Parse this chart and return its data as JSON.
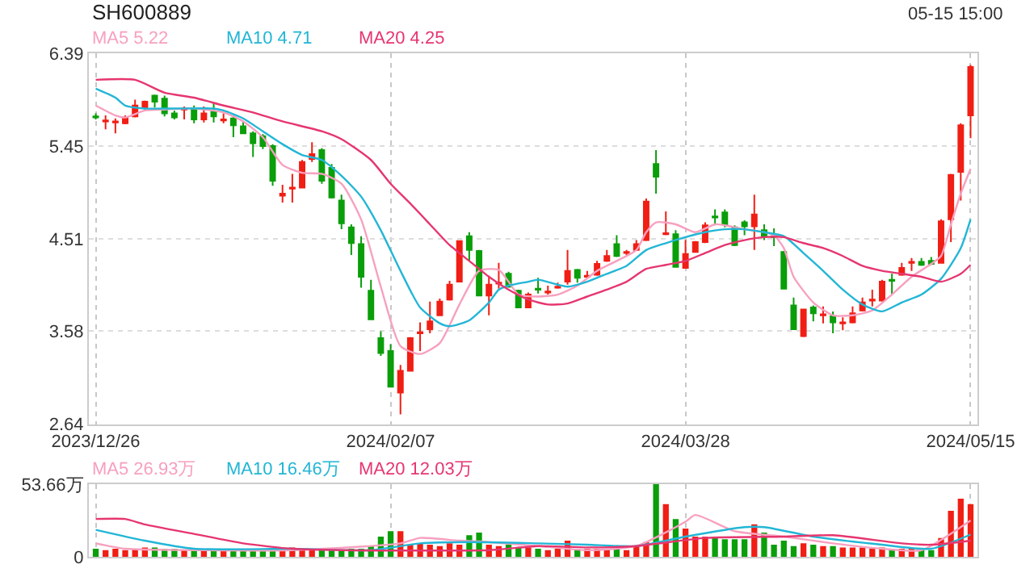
{
  "chart_data": [
    {
      "type": "candlestick",
      "title": "SH600889",
      "annotations": [
        "05-15 15:00"
      ],
      "categories": [
        "2023/12/26",
        null,
        null,
        null,
        null,
        null,
        null,
        null,
        null,
        null,
        null,
        null,
        null,
        null,
        null,
        null,
        null,
        null,
        null,
        null,
        null,
        null,
        null,
        null,
        null,
        null,
        null,
        null,
        null,
        null,
        "2024/02/07",
        null,
        null,
        null,
        null,
        null,
        null,
        null,
        null,
        null,
        null,
        null,
        null,
        null,
        null,
        null,
        null,
        null,
        null,
        null,
        null,
        null,
        null,
        null,
        null,
        null,
        null,
        null,
        null,
        null,
        "2024/03/28",
        null,
        null,
        null,
        null,
        null,
        null,
        null,
        null,
        null,
        null,
        null,
        null,
        null,
        null,
        null,
        null,
        null,
        null,
        null,
        null,
        null,
        null,
        null,
        null,
        null,
        null,
        null,
        null,
        "2024/05/15"
      ],
      "ohlc": [
        [
          5.75,
          5.78,
          5.72,
          5.74
        ],
        [
          5.7,
          5.76,
          5.62,
          5.71
        ],
        [
          5.69,
          5.73,
          5.58,
          5.7
        ],
        [
          5.68,
          5.76,
          5.67,
          5.74
        ],
        [
          5.75,
          5.92,
          5.74,
          5.86
        ],
        [
          5.84,
          5.91,
          5.82,
          5.9
        ],
        [
          5.96,
          5.97,
          5.84,
          5.9
        ],
        [
          5.93,
          5.96,
          5.75,
          5.78
        ],
        [
          5.78,
          5.81,
          5.72,
          5.74
        ],
        [
          5.82,
          5.85,
          5.72,
          5.83
        ],
        [
          5.82,
          5.86,
          5.68,
          5.72
        ],
        [
          5.72,
          5.85,
          5.69,
          5.78
        ],
        [
          5.8,
          5.88,
          5.69,
          5.75
        ],
        [
          5.71,
          5.78,
          5.68,
          5.72
        ],
        [
          5.73,
          5.76,
          5.54,
          5.66
        ],
        [
          5.65,
          5.7,
          5.57,
          5.58
        ],
        [
          5.58,
          5.6,
          5.34,
          5.48
        ],
        [
          5.55,
          5.57,
          5.42,
          5.45
        ],
        [
          5.45,
          5.47,
          5.05,
          5.1
        ],
        [
          4.95,
          5.06,
          4.88,
          4.97
        ],
        [
          5.02,
          5.17,
          4.88,
          5.03
        ],
        [
          5.03,
          5.31,
          5.03,
          5.29
        ],
        [
          5.32,
          5.49,
          5.29,
          5.37
        ],
        [
          5.41,
          5.43,
          5.07,
          5.1
        ],
        [
          5.23,
          5.27,
          4.92,
          4.93
        ],
        [
          4.9,
          4.96,
          4.61,
          4.67
        ],
        [
          4.63,
          4.66,
          4.35,
          4.47
        ],
        [
          4.46,
          4.54,
          4.02,
          4.13
        ],
        [
          3.99,
          4.1,
          3.7,
          3.7
        ],
        [
          3.51,
          3.58,
          3.33,
          3.36
        ],
        [
          3.38,
          3.45,
          3.02,
          3.02
        ],
        [
          2.96,
          3.24,
          2.74,
          3.18
        ],
        [
          3.18,
          3.52,
          3.18,
          3.51
        ],
        [
          3.56,
          3.67,
          3.38,
          3.57
        ],
        [
          3.6,
          3.88,
          3.56,
          3.68
        ],
        [
          3.74,
          3.91,
          3.74,
          3.88
        ],
        [
          3.9,
          4.09,
          3.89,
          4.05
        ],
        [
          4.08,
          4.49,
          4.08,
          4.49
        ],
        [
          4.54,
          4.58,
          4.29,
          4.4
        ],
        [
          4.39,
          4.4,
          3.94,
          3.94
        ],
        [
          3.94,
          4.14,
          3.74,
          4.05
        ],
        [
          4.06,
          4.27,
          4.01,
          4.07
        ],
        [
          4.16,
          4.18,
          4.02,
          4.03
        ],
        [
          3.99,
          4.0,
          3.82,
          3.82
        ],
        [
          3.82,
          3.97,
          3.82,
          3.95
        ],
        [
          4.01,
          4.12,
          3.96,
          4.0
        ],
        [
          3.97,
          4.04,
          3.95,
          3.98
        ],
        [
          4.02,
          4.07,
          4.01,
          4.03
        ],
        [
          4.08,
          4.4,
          4.05,
          4.19
        ],
        [
          4.2,
          4.21,
          4.07,
          4.12
        ],
        [
          4.13,
          4.19,
          4.11,
          4.14
        ],
        [
          4.15,
          4.29,
          4.14,
          4.26
        ],
        [
          4.29,
          4.4,
          4.28,
          4.34
        ],
        [
          4.46,
          4.55,
          4.33,
          4.34
        ],
        [
          4.37,
          4.4,
          4.35,
          4.38
        ],
        [
          4.4,
          4.5,
          4.39,
          4.46
        ],
        [
          4.5,
          4.92,
          4.49,
          4.89
        ],
        [
          5.27,
          5.41,
          4.97,
          5.14
        ],
        [
          4.56,
          4.79,
          4.55,
          4.57
        ],
        [
          4.56,
          4.6,
          4.23,
          4.23
        ],
        [
          4.22,
          4.5,
          4.22,
          4.36
        ],
        [
          4.38,
          4.49,
          4.38,
          4.48
        ],
        [
          4.48,
          4.68,
          4.47,
          4.65
        ],
        [
          4.74,
          4.81,
          4.65,
          4.73
        ],
        [
          4.78,
          4.81,
          4.63,
          4.66
        ],
        [
          4.63,
          4.65,
          4.44,
          4.45
        ],
        [
          4.68,
          4.7,
          4.55,
          4.64
        ],
        [
          4.64,
          4.96,
          4.4,
          4.76
        ],
        [
          4.6,
          4.66,
          4.5,
          4.54
        ],
        [
          4.54,
          4.62,
          4.44,
          4.53
        ],
        [
          4.38,
          4.39,
          4.01,
          4.01
        ],
        [
          3.84,
          3.92,
          3.6,
          3.6
        ],
        [
          3.53,
          3.8,
          3.52,
          3.8
        ],
        [
          3.82,
          3.84,
          3.68,
          3.76
        ],
        [
          3.74,
          3.83,
          3.66,
          3.75
        ],
        [
          3.73,
          3.78,
          3.56,
          3.67
        ],
        [
          3.66,
          3.72,
          3.59,
          3.67
        ],
        [
          3.67,
          3.83,
          3.66,
          3.76
        ],
        [
          3.79,
          3.92,
          3.78,
          3.87
        ],
        [
          3.89,
          4.0,
          3.83,
          3.9
        ],
        [
          3.89,
          4.1,
          3.88,
          4.08
        ],
        [
          4.1,
          4.16,
          3.95,
          4.09
        ],
        [
          4.15,
          4.27,
          4.14,
          4.22
        ],
        [
          4.27,
          4.32,
          4.19,
          4.28
        ],
        [
          4.28,
          4.32,
          4.24,
          4.25
        ],
        [
          4.29,
          4.33,
          4.25,
          4.26
        ],
        [
          4.27,
          4.71,
          4.27,
          4.69
        ],
        [
          4.71,
          5.17,
          4.48,
          5.16
        ],
        [
          5.19,
          5.68,
          4.9,
          5.66
        ],
        [
          5.76,
          6.27,
          5.53,
          6.25
        ]
      ],
      "series": [
        {
          "name": "MA5 5.22",
          "type": "line",
          "color": "#f7a0bf",
          "values": [
            5.86,
            null,
            5.76,
            5.74,
            null,
            5.81,
            null,
            5.82,
            null,
            null,
            5.83,
            null,
            null,
            5.79,
            null,
            5.7,
            null,
            5.54,
            null,
            5.26,
            null,
            5.18,
            null,
            5.17,
            null,
            5.07,
            null,
            4.71,
            null,
            4.03,
            null,
            3.43,
            null,
            3.35,
            null,
            3.46,
            null,
            3.85,
            null,
            4.19,
            null,
            4.2,
            4.08,
            3.95,
            null,
            3.93,
            null,
            3.95,
            null,
            4.04,
            null,
            4.19,
            null,
            4.29,
            null,
            4.4,
            4.58,
            4.68,
            null,
            4.66,
            null,
            4.58,
            null,
            4.66,
            4.65,
            null,
            4.61,
            null,
            4.58,
            4.55,
            4.42,
            4.13,
            null,
            3.87,
            null,
            3.74,
            null,
            3.74,
            null,
            3.79,
            null,
            3.95,
            null,
            4.13,
            null,
            4.26,
            4.34,
            4.66,
            4.97,
            5.22
          ]
        },
        {
          "name": "MA10 4.71",
          "type": "line",
          "color": "#22b6d6",
          "values": [
            6.03,
            null,
            5.94,
            5.86,
            null,
            5.83,
            null,
            null,
            5.83,
            null,
            null,
            null,
            5.83,
            5.81,
            null,
            5.73,
            null,
            5.6,
            null,
            5.47,
            null,
            5.36,
            null,
            5.31,
            null,
            5.15,
            null,
            4.94,
            null,
            4.6,
            null,
            4.19,
            null,
            3.82,
            null,
            3.66,
            3.63,
            null,
            3.69,
            null,
            3.87,
            4.0,
            4.04,
            null,
            4.08,
            4.1,
            null,
            4.05,
            4.03,
            null,
            4.08,
            null,
            4.16,
            null,
            4.24,
            null,
            4.4,
            null,
            4.47,
            null,
            4.53,
            null,
            4.58,
            null,
            4.61,
            null,
            4.61,
            null,
            4.58,
            null,
            4.54,
            null,
            4.37,
            null,
            4.19,
            null,
            4.0,
            null,
            3.85,
            null,
            3.78,
            null,
            3.87,
            null,
            3.95,
            null,
            4.11,
            null,
            4.42,
            4.71
          ]
        },
        {
          "name": "MA20 4.25",
          "type": "line",
          "color": "#e6366f",
          "values": [
            6.12,
            null,
            null,
            null,
            6.12,
            null,
            null,
            5.99,
            null,
            null,
            5.94,
            null,
            null,
            5.86,
            null,
            null,
            5.79,
            null,
            null,
            5.7,
            null,
            null,
            null,
            5.6,
            null,
            5.52,
            null,
            null,
            5.31,
            null,
            5.07,
            null,
            4.87,
            null,
            4.66,
            null,
            4.45,
            null,
            4.29,
            null,
            4.13,
            null,
            4.0,
            null,
            3.9,
            null,
            3.85,
            null,
            3.86,
            null,
            3.93,
            null,
            4.0,
            null,
            4.08,
            null,
            4.21,
            null,
            4.25,
            null,
            4.29,
            null,
            4.37,
            null,
            4.45,
            null,
            4.5,
            null,
            4.53,
            null,
            4.53,
            null,
            4.47,
            null,
            4.42,
            null,
            4.34,
            null,
            4.24,
            null,
            4.19,
            null,
            4.16,
            null,
            4.13,
            null,
            4.08,
            null,
            4.16,
            4.25
          ]
        }
      ],
      "ylim": [
        2.64,
        6.39
      ],
      "yticks": [
        6.39,
        5.45,
        4.51,
        3.58,
        2.64
      ],
      "grid": true,
      "legend": "top left"
    },
    {
      "type": "bar",
      "tick_labels": "y",
      "categories": [
        "2023/12/26",
        null,
        null,
        null,
        null,
        null,
        null,
        null,
        null,
        null,
        null,
        null,
        null,
        null,
        null,
        null,
        null,
        null,
        null,
        null,
        null,
        null,
        null,
        null,
        null,
        null,
        null,
        null,
        null,
        null,
        "2024/02/07",
        null,
        null,
        null,
        null,
        null,
        null,
        null,
        null,
        null,
        null,
        null,
        null,
        null,
        null,
        null,
        null,
        null,
        null,
        null,
        null,
        null,
        null,
        null,
        null,
        null,
        null,
        null,
        null,
        null,
        "2024/03/28",
        null,
        null,
        null,
        null,
        null,
        null,
        null,
        null,
        null,
        null,
        null,
        null,
        null,
        null,
        null,
        null,
        null,
        null,
        null,
        null,
        null,
        null,
        null,
        null,
        null,
        null,
        null,
        null,
        "2024/05/15"
      ],
      "series": [
        {
          "type": "bar",
          "values": [
            6,
            5,
            6,
            5,
            6,
            7,
            7,
            6,
            6,
            5,
            6,
            6,
            5,
            6,
            6,
            5,
            5,
            6,
            6,
            5,
            7,
            6,
            6,
            5,
            5,
            5,
            6,
            6,
            8,
            15,
            19,
            19,
            9,
            10,
            9,
            8,
            10,
            9,
            16,
            18,
            9,
            8,
            9,
            7,
            7,
            6,
            5,
            6,
            12,
            6,
            6,
            6,
            6,
            7,
            5,
            8,
            11,
            53.66,
            39,
            28,
            21,
            15,
            15,
            14,
            13,
            13,
            13,
            24,
            18,
            9,
            12,
            8,
            10,
            9,
            8,
            8,
            7,
            7,
            7,
            6,
            7,
            6,
            6,
            6,
            5,
            5,
            14,
            34,
            43,
            39
          ],
          "colors": [
            "#0a9e0a",
            "#f01e14",
            "#f01e14",
            "#f01e14",
            "#f01e14",
            "#f01e14",
            "#0a9e0a",
            "#0a9e0a",
            "#0a9e0a",
            "#f01e14",
            "#0a9e0a",
            "#f01e14",
            "#0a9e0a",
            "#f01e14",
            "#0a9e0a",
            "#0a9e0a",
            "#0a9e0a",
            "#0a9e0a",
            "#0a9e0a",
            "#f01e14",
            "#f01e14",
            "#f01e14",
            "#f01e14",
            "#0a9e0a",
            "#0a9e0a",
            "#0a9e0a",
            "#0a9e0a",
            "#0a9e0a",
            "#0a9e0a",
            "#0a9e0a",
            "#0a9e0a",
            "#f01e14",
            "#f01e14",
            "#f01e14",
            "#f01e14",
            "#f01e14",
            "#f01e14",
            "#f01e14",
            "#0a9e0a",
            "#0a9e0a",
            "#f01e14",
            "#f01e14",
            "#0a9e0a",
            "#0a9e0a",
            "#f01e14",
            "#0a9e0a",
            "#f01e14",
            "#f01e14",
            "#f01e14",
            "#0a9e0a",
            "#f01e14",
            "#f01e14",
            "#f01e14",
            "#0a9e0a",
            "#f01e14",
            "#f01e14",
            "#f01e14",
            "#0a9e0a",
            "#f01e14",
            "#0a9e0a",
            "#f01e14",
            "#f01e14",
            "#f01e14",
            "#0a9e0a",
            "#0a9e0a",
            "#0a9e0a",
            "#0a9e0a",
            "#f01e14",
            "#0a9e0a",
            "#0a9e0a",
            "#0a9e0a",
            "#0a9e0a",
            "#f01e14",
            "#0a9e0a",
            "#f01e14",
            "#0a9e0a",
            "#f01e14",
            "#f01e14",
            "#f01e14",
            "#f01e14",
            "#f01e14",
            "#0a9e0a",
            "#f01e14",
            "#f01e14",
            "#0a9e0a",
            "#0a9e0a",
            "#f01e14",
            "#f01e14",
            "#f01e14",
            "#f01e14"
          ]
        },
        {
          "name": "MA5 26.93万",
          "type": "line",
          "color": "#f7a0bf",
          "values": [
            10,
            null,
            null,
            6,
            null,
            null,
            null,
            null,
            null,
            null,
            5,
            null,
            null,
            null,
            null,
            null,
            null,
            null,
            null,
            null,
            5,
            null,
            null,
            null,
            null,
            null,
            null,
            null,
            null,
            null,
            null,
            10,
            null,
            14,
            null,
            null,
            null,
            12,
            null,
            null,
            11,
            null,
            null,
            null,
            null,
            8,
            null,
            null,
            null,
            null,
            5,
            null,
            null,
            null,
            null,
            8,
            null,
            null,
            null,
            null,
            26,
            31,
            null,
            null,
            null,
            19,
            null,
            null,
            null,
            null,
            15,
            null,
            null,
            null,
            null,
            10,
            null,
            null,
            null,
            null,
            6,
            null,
            null,
            null,
            5,
            null,
            null,
            null,
            null,
            26.93
          ]
        },
        {
          "name": "MA10 16.46万",
          "type": "line",
          "color": "#22b6d6",
          "values": [
            20,
            null,
            null,
            null,
            null,
            12,
            null,
            null,
            null,
            null,
            6,
            null,
            null,
            null,
            null,
            null,
            null,
            null,
            null,
            null,
            6,
            null,
            null,
            null,
            null,
            null,
            null,
            null,
            5,
            null,
            null,
            null,
            null,
            10,
            null,
            null,
            null,
            null,
            11,
            null,
            null,
            null,
            null,
            null,
            null,
            10,
            null,
            null,
            null,
            null,
            9,
            null,
            null,
            null,
            null,
            8,
            null,
            null,
            null,
            null,
            15,
            null,
            null,
            null,
            null,
            null,
            22,
            null,
            22,
            null,
            null,
            null,
            null,
            15,
            null,
            null,
            null,
            null,
            null,
            null,
            9,
            null,
            null,
            null,
            null,
            6,
            null,
            null,
            null,
            16.46
          ]
        },
        {
          "name": "MA20 12.03万",
          "type": "line",
          "color": "#e6366f",
          "values": [
            28,
            null,
            null,
            28,
            null,
            24,
            null,
            null,
            null,
            null,
            17,
            null,
            null,
            null,
            null,
            10,
            null,
            null,
            null,
            null,
            6,
            null,
            null,
            null,
            null,
            5,
            null,
            null,
            null,
            null,
            null,
            null,
            null,
            null,
            null,
            null,
            null,
            null,
            null,
            null,
            5,
            null,
            null,
            null,
            null,
            8,
            null,
            null,
            null,
            null,
            7,
            null,
            null,
            null,
            null,
            8,
            null,
            null,
            null,
            null,
            null,
            null,
            14,
            null,
            null,
            null,
            null,
            null,
            null,
            null,
            15,
            null,
            null,
            null,
            null,
            16,
            null,
            null,
            null,
            null,
            null,
            null,
            10,
            null,
            null,
            9,
            null,
            null,
            null,
            12.03
          ]
        }
      ],
      "ylim": [
        0,
        53.66
      ],
      "yticks": [
        0,
        {
          "value": 53.66,
          "label": "53.66万"
        }
      ],
      "grid": true,
      "legend": "top left"
    }
  ]
}
